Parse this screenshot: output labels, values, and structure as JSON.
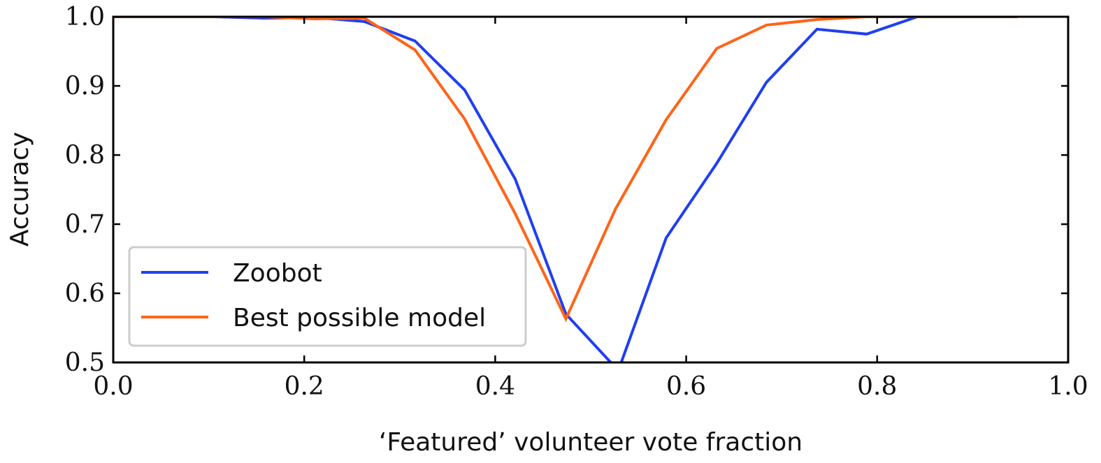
{
  "chart_data": {
    "type": "line",
    "xlabel": "‘Featured’ volunteer vote fraction",
    "ylabel": "Accuracy",
    "xlim": [
      0.0,
      1.0
    ],
    "ylim": [
      0.5,
      1.0
    ],
    "xticks": [
      "0.0",
      "0.2",
      "0.4",
      "0.6",
      "0.8",
      "1.0"
    ],
    "yticks": [
      "0.5",
      "0.6",
      "0.7",
      "0.8",
      "0.9",
      "1.0"
    ],
    "legend_position": "lower-left",
    "grid": false,
    "series": [
      {
        "name": "Zoobot",
        "color": "#1f3ff0",
        "points": [
          [
            0.0,
            1.0
          ],
          [
            0.053,
            1.0
          ],
          [
            0.105,
            1.0
          ],
          [
            0.158,
            0.998
          ],
          [
            0.211,
            0.999
          ],
          [
            0.263,
            0.993
          ],
          [
            0.316,
            0.965
          ],
          [
            0.368,
            0.894
          ],
          [
            0.421,
            0.765
          ],
          [
            0.474,
            0.57
          ],
          [
            0.521,
            0.5
          ]
        ]
      },
      {
        "name": "Zoobot",
        "color": "#1f3ff0",
        "points": [
          [
            0.532,
            0.5
          ],
          [
            0.579,
            0.68
          ],
          [
            0.632,
            0.788
          ],
          [
            0.684,
            0.905
          ],
          [
            0.737,
            0.982
          ],
          [
            0.789,
            0.975
          ],
          [
            0.842,
            1.0
          ],
          [
            0.895,
            1.0
          ],
          [
            0.947,
            1.0
          ]
        ]
      },
      {
        "name": "Best possible model",
        "color": "#ff6418",
        "points": [
          [
            0.0,
            1.0
          ],
          [
            0.053,
            1.0
          ],
          [
            0.105,
            1.0
          ],
          [
            0.158,
            1.0
          ],
          [
            0.211,
            0.997
          ],
          [
            0.263,
            0.998
          ],
          [
            0.316,
            0.952
          ],
          [
            0.368,
            0.852
          ],
          [
            0.421,
            0.715
          ],
          [
            0.474,
            0.563
          ],
          [
            0.526,
            0.722
          ],
          [
            0.579,
            0.851
          ],
          [
            0.632,
            0.954
          ],
          [
            0.684,
            0.988
          ],
          [
            0.737,
            0.996
          ],
          [
            0.789,
            1.0
          ],
          [
            0.842,
            1.0
          ],
          [
            0.895,
            1.0
          ],
          [
            0.947,
            1.0
          ]
        ]
      }
    ],
    "legend": [
      {
        "label": "Zoobot",
        "color": "#1f3ff0"
      },
      {
        "label": "Best possible model",
        "color": "#ff6418"
      }
    ]
  }
}
